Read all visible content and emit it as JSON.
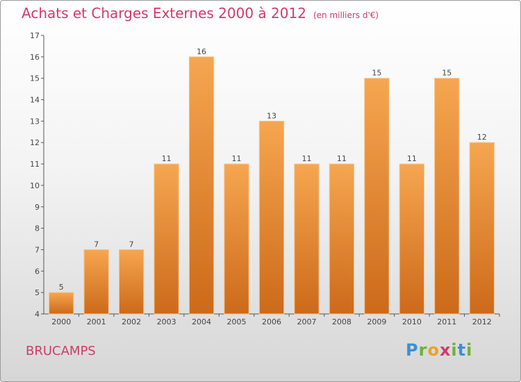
{
  "header": {
    "title": "Achats et Charges Externes 2000 à 2012",
    "units": "(en milliers d'€)"
  },
  "footer": {
    "place": "BRUCAMPS",
    "logo_letters": [
      "P",
      "r",
      "o",
      "x",
      "i",
      "t",
      "i"
    ]
  },
  "colors": {
    "accent": "#d23a6a",
    "bar_top": "#f6a650",
    "bar_bottom": "#cc6a1a",
    "logo": [
      "#3b8fd6",
      "#6bb23a",
      "#f0a020",
      "#d23a6a",
      "#6bb23a",
      "#3b8fd6",
      "#6bb23a"
    ]
  },
  "chart_data": {
    "type": "bar",
    "title": "Achats et Charges Externes 2000 à 2012",
    "subtitle": "(en milliers d'€)",
    "xlabel": "",
    "ylabel": "",
    "categories": [
      "2000",
      "2001",
      "2002",
      "2003",
      "2004",
      "2005",
      "2006",
      "2007",
      "2008",
      "2009",
      "2010",
      "2011",
      "2012"
    ],
    "values": [
      5,
      7,
      7,
      11,
      16,
      11,
      13,
      11,
      11,
      15,
      11,
      15,
      12
    ],
    "ylim": [
      4,
      17
    ],
    "yticks": [
      4,
      5,
      6,
      7,
      8,
      9,
      10,
      11,
      12,
      13,
      14,
      15,
      16,
      17
    ],
    "grid": false,
    "legend": "none"
  }
}
